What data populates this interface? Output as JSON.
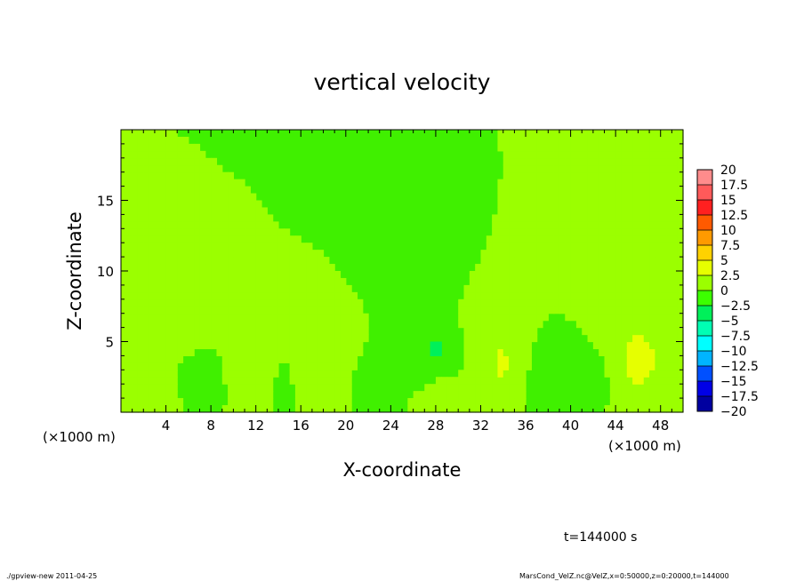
{
  "chart_data": {
    "type": "heatmap",
    "title": "vertical velocity",
    "xlabel": "X-coordinate",
    "ylabel": "Z-coordinate",
    "xunit_left": "(×1000 m)",
    "xunit_right": "(×1000 m)",
    "xlim": [
      0,
      50
    ],
    "ylim": [
      0,
      20
    ],
    "xticks": [
      4,
      8,
      12,
      16,
      20,
      24,
      28,
      32,
      36,
      40,
      44,
      48
    ],
    "yticks": [
      5,
      10,
      15
    ],
    "colorbar": {
      "levels": [
        "20",
        "17.5",
        "15",
        "12.5",
        "10",
        "7.5",
        "5",
        "2.5",
        "0",
        "−2.5",
        "−5",
        "−7.5",
        "−10",
        "−12.5",
        "−15",
        "−17.5",
        "−20"
      ],
      "colors": [
        "#ff8c8c",
        "#ff5a5a",
        "#ff2020",
        "#ff5a00",
        "#ff9a00",
        "#ffd200",
        "#e6ff00",
        "#9bff00",
        "#3cff00",
        "#00f05a",
        "#00ffb4",
        "#00ffff",
        "#00b4ff",
        "#0050ff",
        "#0000e6",
        "#0000a0",
        "#6a00c8"
      ]
    },
    "background": "#40f000",
    "features": [
      {
        "x": 11.5,
        "z": 2.3,
        "sx": 1.2,
        "sz": 2.0,
        "w": 2.2
      },
      {
        "x": 34,
        "z": 3.3,
        "sx": 1.6,
        "sz": 2.8,
        "w": 2.8
      },
      {
        "x": 46,
        "z": 3.7,
        "sx": 2.2,
        "sz": 2.8,
        "w": 3.0
      },
      {
        "x": 17.3,
        "z": 2.5,
        "sx": 1.6,
        "sz": 2.0,
        "w": 1.3
      },
      {
        "x": 28.5,
        "z": 1.2,
        "sx": 1.4,
        "sz": 1.1,
        "w": 1.0
      },
      {
        "x": 2.5,
        "z": 1.2,
        "sx": 1.8,
        "sz": 1.2,
        "w": 0.6
      },
      {
        "x": 7.5,
        "z": 1.8,
        "sx": 1.3,
        "sz": 1.3,
        "w": -1.0
      },
      {
        "x": 14.5,
        "z": 1.8,
        "sx": 1.0,
        "sz": 1.4,
        "w": -0.8
      },
      {
        "x": 22.5,
        "z": 1.5,
        "sx": 1.3,
        "sz": 1.2,
        "w": -0.8
      },
      {
        "x": 28.2,
        "z": 4.6,
        "sx": 0.7,
        "sz": 0.6,
        "w": -2.6
      },
      {
        "x": 27.5,
        "z": 3.8,
        "sx": 1.8,
        "sz": 1.6,
        "w": -1.0
      },
      {
        "x": 38.5,
        "z": 2.3,
        "sx": 2.0,
        "sz": 2.0,
        "w": -2.2
      },
      {
        "x": 43,
        "z": 2.5,
        "sx": 1.0,
        "sz": 1.8,
        "w": -1.2
      },
      {
        "x": 42.5,
        "z": 11.5,
        "sx": 4.0,
        "sz": 3.0,
        "w": 0.5
      },
      {
        "x": 35,
        "z": 10.5,
        "sx": 3.0,
        "sz": 2.5,
        "w": 0.3
      },
      {
        "x": 30,
        "z": 12.0,
        "sx": 3.0,
        "sz": 2.5,
        "w": -0.3
      },
      {
        "x": 6,
        "z": 6.5,
        "sx": 2.5,
        "sz": 1.5,
        "w": 0.35
      }
    ]
  },
  "footer": {
    "time": "t=144000 s",
    "program": "./gpview-new 2011-04-25",
    "file": "MarsCond_VelZ.nc@VelZ,x=0:50000,z=0:20000,t=144000"
  }
}
